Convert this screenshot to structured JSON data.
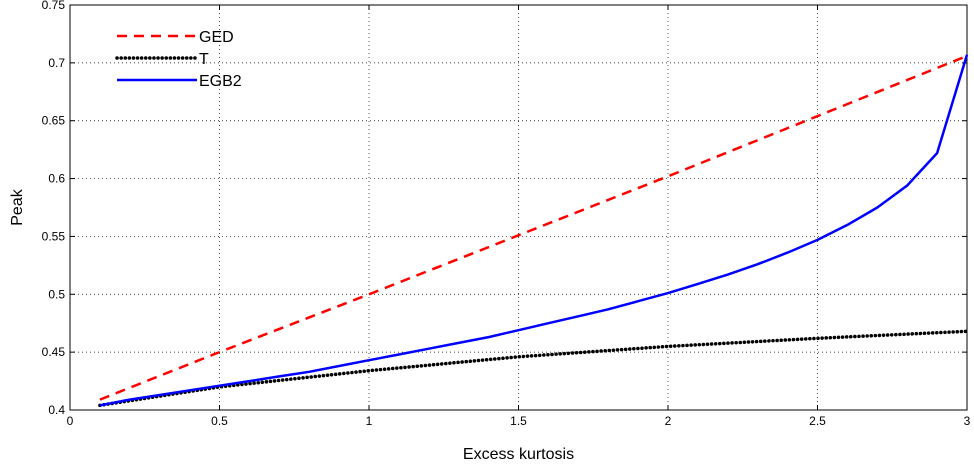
{
  "chart_data": {
    "type": "line",
    "title": "",
    "xlabel": "Excess kurtosis",
    "ylabel": "Peak",
    "xlim": [
      0,
      3
    ],
    "ylim": [
      0.4,
      0.75
    ],
    "xticks": [
      0,
      0.5,
      1,
      1.5,
      2,
      2.5,
      3
    ],
    "xtick_labels": [
      "0",
      "0.5",
      "1",
      "1.5",
      "2",
      "2.5",
      "3"
    ],
    "yticks": [
      0.4,
      0.45,
      0.5,
      0.55,
      0.6,
      0.65,
      0.7,
      0.75
    ],
    "ytick_labels": [
      "0.4",
      "0.45",
      "0.5",
      "0.55",
      "0.6",
      "0.65",
      "0.7",
      "0.75"
    ],
    "grid": true,
    "legend_position": "top-left",
    "series": [
      {
        "name": "GED",
        "color": "#ff0000",
        "style": "dashed",
        "x": [
          0.1,
          0.5,
          1.0,
          1.5,
          2.0,
          2.5,
          3.0
        ],
        "y": [
          0.409,
          0.45,
          0.5,
          0.551,
          0.602,
          0.654,
          0.706
        ]
      },
      {
        "name": "T",
        "color": "#000000",
        "style": "dotted",
        "x": [
          0.1,
          0.5,
          1.0,
          1.5,
          2.0,
          2.5,
          3.0
        ],
        "y": [
          0.404,
          0.42,
          0.434,
          0.446,
          0.455,
          0.462,
          0.468
        ]
      },
      {
        "name": "EGB2",
        "color": "#0000ff",
        "style": "solid",
        "x": [
          0.1,
          0.2,
          0.3,
          0.4,
          0.5,
          0.6,
          0.7,
          0.8,
          0.9,
          1.0,
          1.1,
          1.2,
          1.3,
          1.4,
          1.5,
          1.6,
          1.7,
          1.8,
          1.9,
          2.0,
          2.1,
          2.2,
          2.3,
          2.4,
          2.5,
          2.6,
          2.7,
          2.8,
          2.9,
          3.0
        ],
        "y": [
          0.404,
          0.409,
          0.413,
          0.417,
          0.421,
          0.425,
          0.429,
          0.433,
          0.438,
          0.443,
          0.448,
          0.453,
          0.458,
          0.463,
          0.469,
          0.475,
          0.481,
          0.487,
          0.494,
          0.501,
          0.509,
          0.517,
          0.526,
          0.536,
          0.547,
          0.56,
          0.575,
          0.594,
          0.622,
          0.707
        ]
      }
    ]
  }
}
